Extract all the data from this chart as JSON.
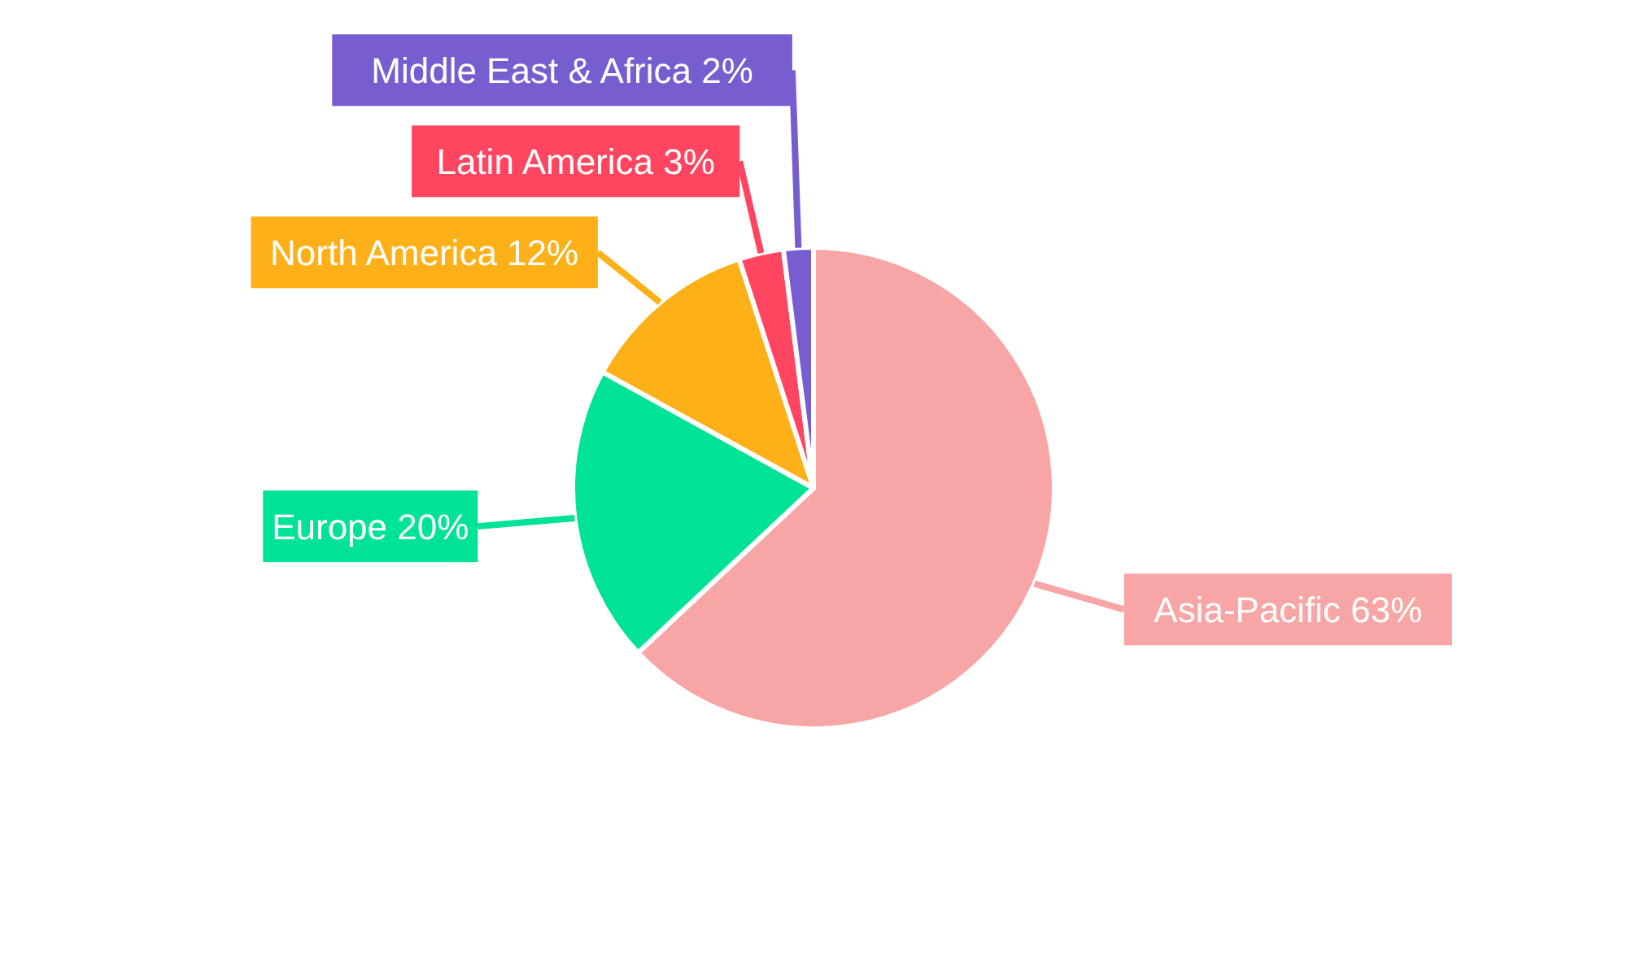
{
  "chart_data": {
    "type": "pie",
    "categories": [
      "Asia-Pacific",
      "Europe",
      "North America",
      "Latin America",
      "Middle East & Africa"
    ],
    "values": [
      63,
      20,
      12,
      3,
      2
    ],
    "value_labels": [
      "63%",
      "20%",
      "12%",
      "3%",
      "2%"
    ],
    "colors": [
      "#f8a5a5",
      "#00e396",
      "#feb019",
      "#ff4560",
      "#775dd0"
    ]
  }
}
